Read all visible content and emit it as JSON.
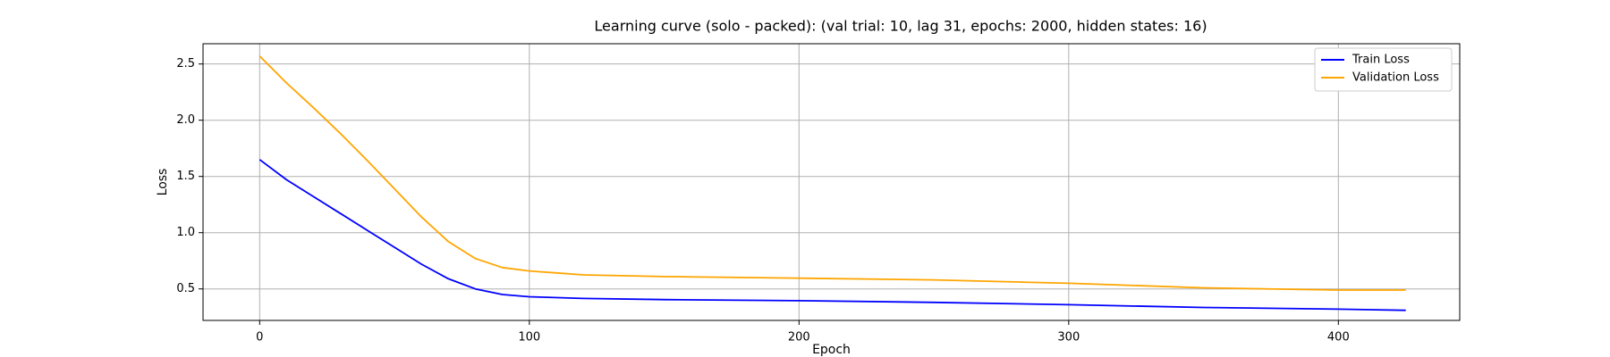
{
  "chart_data": {
    "type": "line",
    "title": "Learning curve (solo - packed): (val trial: 10, lag 31, epochs: 2000, hidden states: 16)",
    "xlabel": "Epoch",
    "ylabel": "Loss",
    "xlim": [
      -21,
      445
    ],
    "ylim": [
      0.22,
      2.68
    ],
    "xticks": [
      0,
      100,
      200,
      300,
      400
    ],
    "yticks": [
      0.5,
      1.0,
      1.5,
      2.0,
      2.5
    ],
    "xtick_labels": [
      "0",
      "100",
      "200",
      "300",
      "400"
    ],
    "ytick_labels": [
      "0.5",
      "1.0",
      "1.5",
      "2.0",
      "2.5"
    ],
    "grid": true,
    "legend_position": "top-right",
    "series": [
      {
        "name": "Train Loss",
        "color": "#0000ff",
        "x": [
          0,
          10,
          20,
          30,
          40,
          50,
          60,
          70,
          80,
          90,
          100,
          120,
          150,
          200,
          250,
          300,
          350,
          400,
          425
        ],
        "y": [
          1.65,
          1.47,
          1.32,
          1.17,
          1.02,
          0.87,
          0.72,
          0.59,
          0.5,
          0.45,
          0.43,
          0.415,
          0.405,
          0.395,
          0.38,
          0.36,
          0.335,
          0.32,
          0.31
        ]
      },
      {
        "name": "Validation Loss",
        "color": "#ffa500",
        "x": [
          0,
          10,
          20,
          30,
          40,
          50,
          60,
          70,
          80,
          90,
          100,
          120,
          150,
          200,
          250,
          300,
          350,
          400,
          425
        ],
        "y": [
          2.57,
          2.33,
          2.11,
          1.88,
          1.64,
          1.39,
          1.14,
          0.92,
          0.77,
          0.69,
          0.66,
          0.625,
          0.61,
          0.595,
          0.58,
          0.55,
          0.51,
          0.49,
          0.49
        ]
      }
    ]
  }
}
